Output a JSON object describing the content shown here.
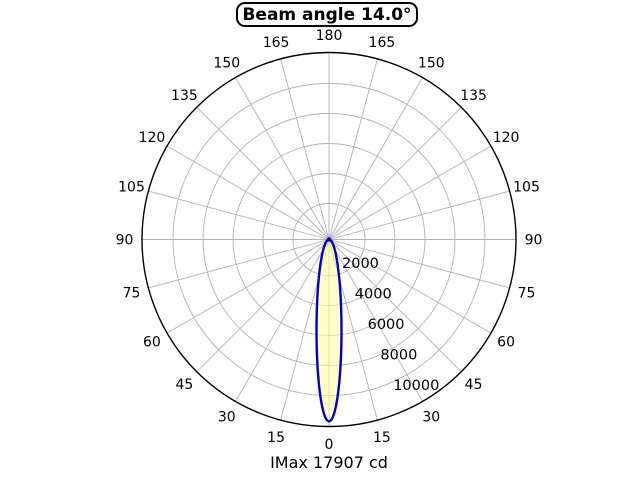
{
  "title": {
    "text": "Beam angle 14.0°"
  },
  "footer": {
    "text": "IMax 17907 cd"
  },
  "chart_data": {
    "type": "polar",
    "title": "Beam angle 14.0°",
    "annotation": "IMax 17907 cd",
    "imax_cd": 17907,
    "beam_angle_deg": 14.0,
    "theta_zero_location": "bottom",
    "theta_tick_step_deg": 15,
    "theta_tick_labels": [
      "0",
      "15",
      "30",
      "45",
      "60",
      "75",
      "90",
      "105",
      "120",
      "135",
      "150",
      "165",
      "180"
    ],
    "theta_labels_mirrored_both_sides": true,
    "r_axis": {
      "min": 0,
      "max": 12000,
      "tick_values": [
        2000,
        4000,
        6000,
        8000,
        10000
      ],
      "tick_labels": [
        "2000",
        "4000",
        "6000",
        "8000",
        "10000"
      ],
      "unlabeled_outer_value": 12000,
      "label_ray_angle_deg_from_bottom": 22.5
    },
    "grid": true,
    "curve": {
      "name": "luminous-intensity-distribution",
      "peak_at_deg": 0,
      "peak_radius_fraction_of_outer": 0.973,
      "profile_model": "ellipse_through_pole",
      "profile_aspect_ratio": 0.1374,
      "profile_samples_deg": [
        0,
        2,
        4,
        6,
        8,
        10,
        12,
        15,
        20,
        25,
        30,
        40,
        50,
        60,
        75,
        90
      ],
      "profile_relative_intensity": [
        1.0,
        0.94,
        0.8,
        0.63,
        0.49,
        0.38,
        0.3,
        0.22,
        0.13,
        0.09,
        0.06,
        0.03,
        0.02,
        0.013,
        0.005,
        0.0
      ]
    },
    "colors": {
      "curve_stroke": "#0000cc",
      "curve_fill": "#ffff99",
      "curve_fill_opacity": 0.55,
      "grid": "#b2b2b2",
      "outer_circle": "#000000",
      "text": "#000000",
      "background": "#ffffff"
    }
  }
}
